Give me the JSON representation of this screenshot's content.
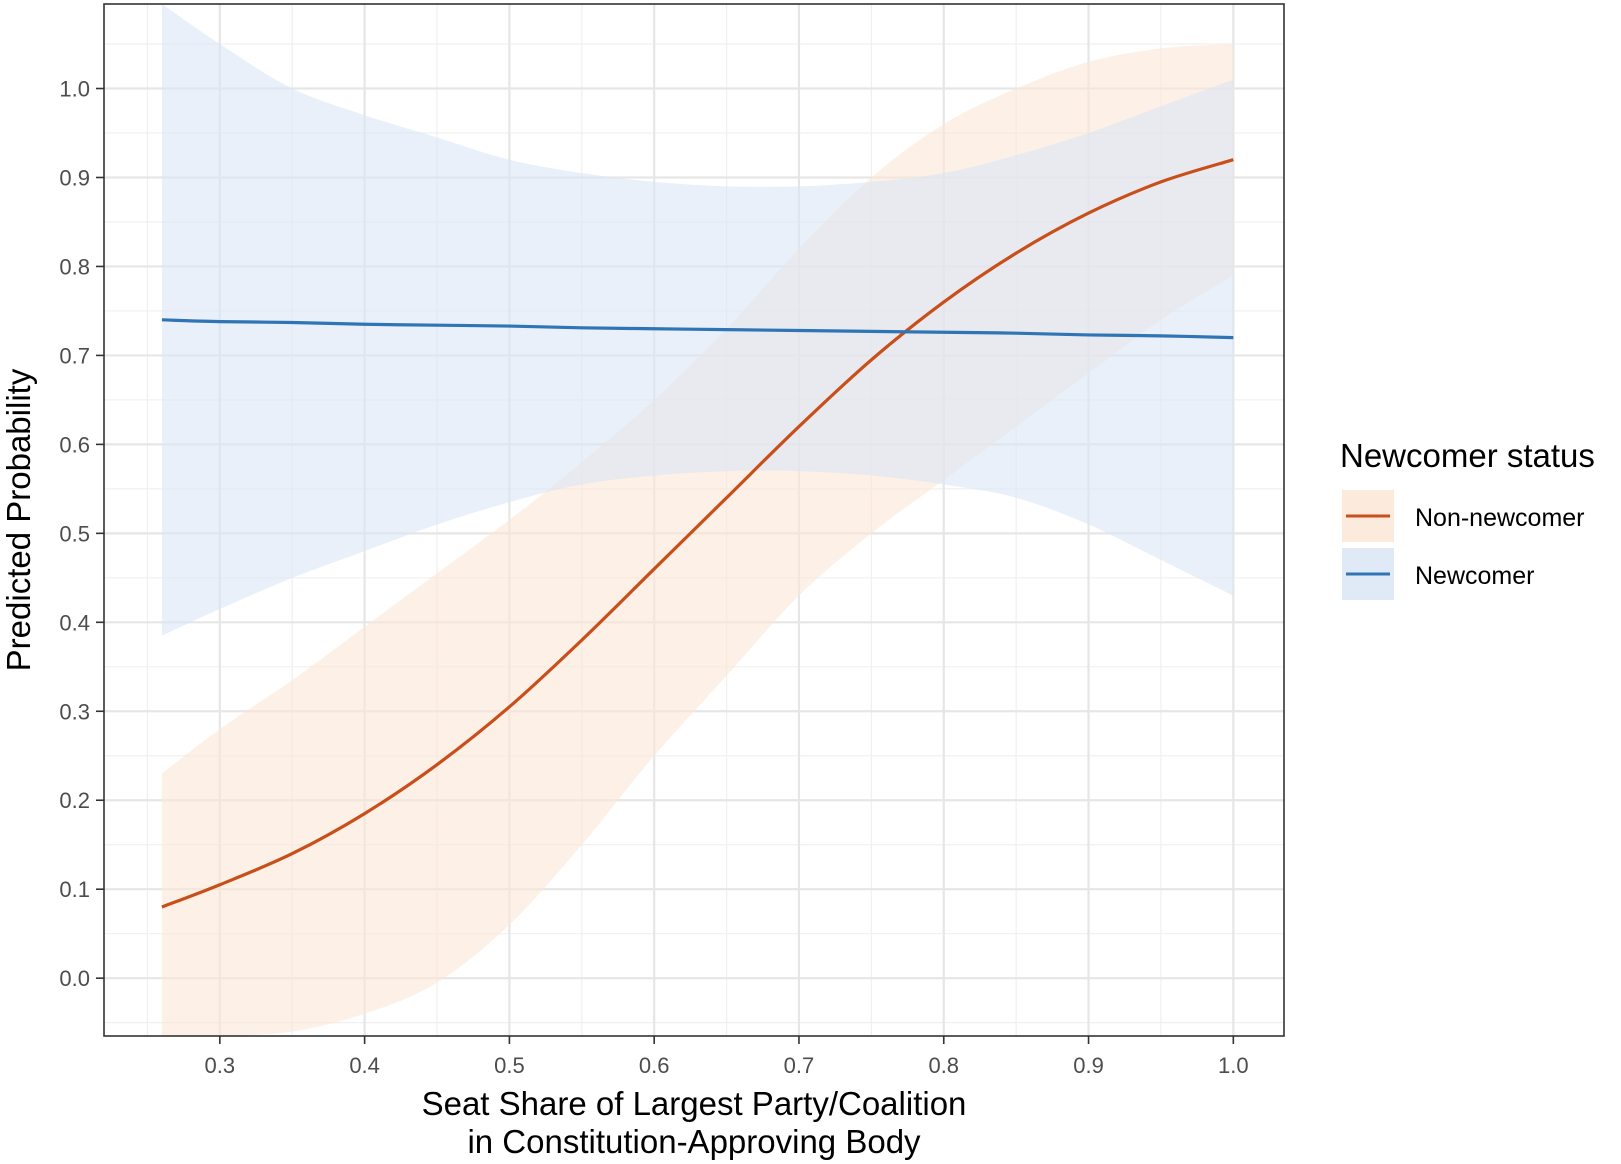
{
  "chart_data": {
    "type": "line",
    "xlabel_line1": "Seat Share of Largest Party/Coalition",
    "xlabel_line2": "in Constitution-Approving Body",
    "ylabel": "Predicted Probability",
    "xlim": [
      0.22,
      1.035
    ],
    "ylim": [
      -0.065,
      1.095
    ],
    "x_ticks": [
      0.3,
      0.4,
      0.5,
      0.6,
      0.7,
      0.8,
      0.9,
      1.0
    ],
    "x_tick_labels": [
      "0.3",
      "0.4",
      "0.5",
      "0.6",
      "0.7",
      "0.8",
      "0.9",
      "1.0"
    ],
    "y_ticks": [
      0.0,
      0.1,
      0.2,
      0.3,
      0.4,
      0.5,
      0.6,
      0.7,
      0.8,
      0.9,
      1.0
    ],
    "y_tick_labels": [
      "0.0",
      "0.1",
      "0.2",
      "0.3",
      "0.4",
      "0.5",
      "0.6",
      "0.7",
      "0.8",
      "0.9",
      "1.0"
    ],
    "grid": true,
    "legend": {
      "title": "Newcomer status",
      "position": "right"
    },
    "series": [
      {
        "name": "Non-newcomer",
        "color": "#c94f1a",
        "fill": "#fce6d6",
        "x": [
          0.26,
          0.3,
          0.35,
          0.4,
          0.45,
          0.5,
          0.55,
          0.6,
          0.65,
          0.7,
          0.75,
          0.8,
          0.85,
          0.9,
          0.95,
          1.0
        ],
        "y": [
          0.08,
          0.105,
          0.14,
          0.185,
          0.24,
          0.305,
          0.38,
          0.46,
          0.54,
          0.62,
          0.695,
          0.76,
          0.815,
          0.86,
          0.895,
          0.92
        ],
        "lower": [
          -0.065,
          -0.065,
          -0.06,
          -0.04,
          -0.005,
          0.06,
          0.15,
          0.25,
          0.34,
          0.43,
          0.5,
          0.56,
          0.62,
          0.68,
          0.74,
          0.79
        ],
        "upper": [
          0.23,
          0.28,
          0.335,
          0.395,
          0.455,
          0.515,
          0.58,
          0.65,
          0.73,
          0.82,
          0.9,
          0.96,
          1.0,
          1.03,
          1.045,
          1.05
        ]
      },
      {
        "name": "Newcomer",
        "color": "#2f74b5",
        "fill": "#dbe6f6",
        "x": [
          0.26,
          0.3,
          0.35,
          0.4,
          0.45,
          0.5,
          0.55,
          0.6,
          0.65,
          0.7,
          0.75,
          0.8,
          0.85,
          0.9,
          0.95,
          1.0
        ],
        "y": [
          0.74,
          0.738,
          0.737,
          0.735,
          0.734,
          0.733,
          0.731,
          0.73,
          0.729,
          0.728,
          0.727,
          0.726,
          0.725,
          0.723,
          0.722,
          0.72
        ],
        "lower": [
          0.385,
          0.415,
          0.45,
          0.48,
          0.51,
          0.535,
          0.555,
          0.565,
          0.57,
          0.57,
          0.565,
          0.555,
          0.54,
          0.51,
          0.47,
          0.43
        ],
        "upper": [
          1.095,
          1.05,
          1.0,
          0.97,
          0.945,
          0.92,
          0.905,
          0.895,
          0.89,
          0.89,
          0.895,
          0.905,
          0.925,
          0.95,
          0.98,
          1.01
        ]
      }
    ]
  }
}
